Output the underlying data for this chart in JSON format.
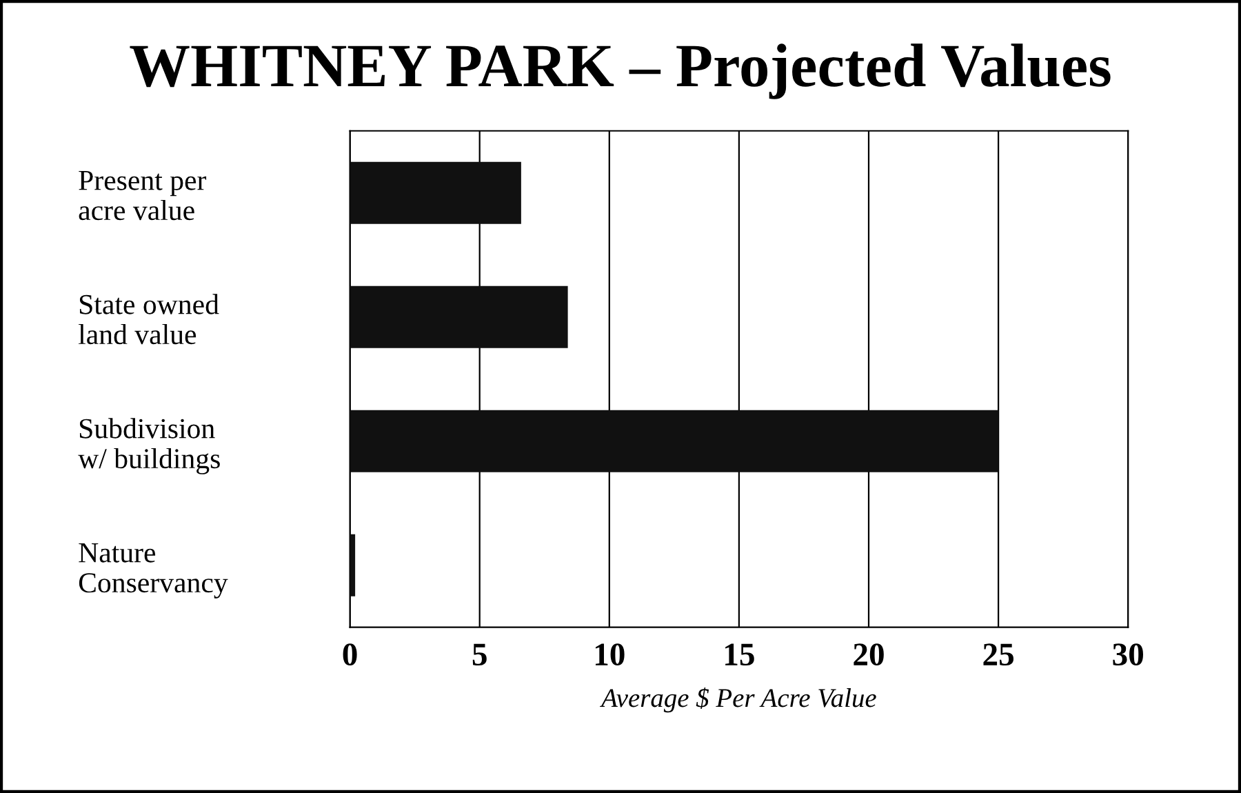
{
  "chart_data": {
    "type": "bar",
    "orientation": "horizontal",
    "title": "WHITNEY PARK – Projected Values",
    "xlabel": "Average $ Per Acre Value",
    "categories": [
      "Present per\nacre value",
      "State owned\nland value",
      "Subdivision\nw/ buildings",
      "Nature\nConservancy"
    ],
    "values": [
      6.6,
      8.4,
      25,
      0.2
    ],
    "color": "#111111",
    "xlim": [
      0,
      30
    ],
    "xticks": [
      0,
      5,
      10,
      15,
      20,
      25,
      30
    ],
    "grid": "x"
  }
}
